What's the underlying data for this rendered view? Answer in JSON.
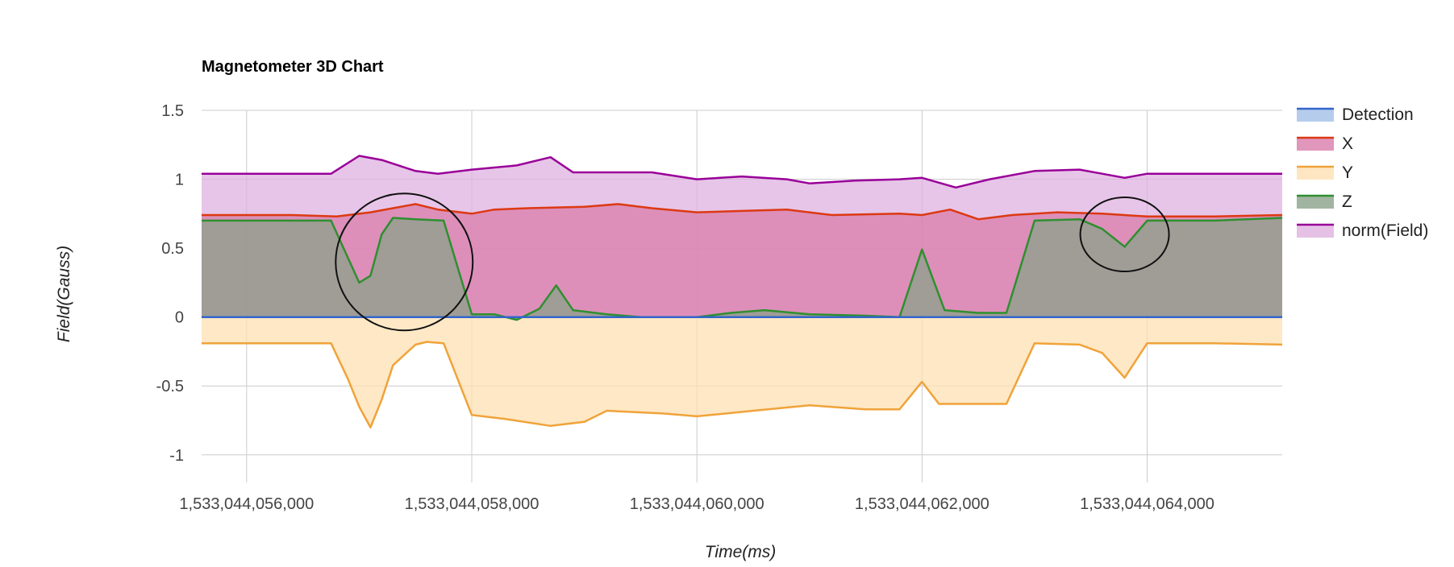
{
  "chart_data": {
    "type": "area",
    "title": "Magnetometer 3D Chart",
    "xlabel": "Time(ms)",
    "ylabel": "Field(Gauss)",
    "xlim": [
      1533044055600,
      1533044065200
    ],
    "ylim": [
      -1.2,
      1.5
    ],
    "x_ticks": [
      1533044056000,
      1533044058000,
      1533044060000,
      1533044062000,
      1533044064000
    ],
    "x_tick_labels": [
      "1,533,044,056,000",
      "1,533,044,058,000",
      "1,533,044,060,000",
      "1,533,044,062,000",
      "1,533,044,064,000"
    ],
    "y_ticks": [
      1.5,
      1,
      0.5,
      0,
      -0.5,
      -1
    ],
    "y_tick_labels": [
      "1.5",
      "1",
      "0.5",
      "0",
      "-0.5",
      "-1"
    ],
    "grid": true,
    "legend_position": "right",
    "series": [
      {
        "name": "Detection",
        "color": "#3366cc",
        "fill": "#a4bfe8",
        "points": [
          [
            1533044055600,
            0
          ],
          [
            1533044065200,
            0
          ]
        ]
      },
      {
        "name": "X",
        "color": "#dc3912",
        "fill": "#d97cab",
        "points": [
          [
            1533044055600,
            0.74
          ],
          [
            1533044056000,
            0.74
          ],
          [
            1533044056400,
            0.74
          ],
          [
            1533044056800,
            0.73
          ],
          [
            1533044057100,
            0.76
          ],
          [
            1533044057300,
            0.79
          ],
          [
            1533044057500,
            0.82
          ],
          [
            1533044057700,
            0.78
          ],
          [
            1533044058000,
            0.75
          ],
          [
            1533044058200,
            0.78
          ],
          [
            1533044058500,
            0.79
          ],
          [
            1533044059000,
            0.8
          ],
          [
            1533044059300,
            0.82
          ],
          [
            1533044059600,
            0.79
          ],
          [
            1533044060000,
            0.76
          ],
          [
            1533044060400,
            0.77
          ],
          [
            1533044060800,
            0.78
          ],
          [
            1533044061200,
            0.74
          ],
          [
            1533044061800,
            0.75
          ],
          [
            1533044062000,
            0.74
          ],
          [
            1533044062250,
            0.78
          ],
          [
            1533044062500,
            0.71
          ],
          [
            1533044062800,
            0.74
          ],
          [
            1533044063200,
            0.76
          ],
          [
            1533044063600,
            0.75
          ],
          [
            1533044064000,
            0.73
          ],
          [
            1533044064600,
            0.73
          ],
          [
            1533044065200,
            0.74
          ]
        ]
      },
      {
        "name": "Y",
        "color": "#f0a33a",
        "fill": "#fde0b1",
        "points": [
          [
            1533044055600,
            -0.19
          ],
          [
            1533044056000,
            -0.19
          ],
          [
            1533044056500,
            -0.19
          ],
          [
            1533044056750,
            -0.19
          ],
          [
            1533044056900,
            -0.45
          ],
          [
            1533044057000,
            -0.65
          ],
          [
            1533044057100,
            -0.8
          ],
          [
            1533044057200,
            -0.6
          ],
          [
            1533044057300,
            -0.35
          ],
          [
            1533044057500,
            -0.2
          ],
          [
            1533044057600,
            -0.18
          ],
          [
            1533044057750,
            -0.19
          ],
          [
            1533044058000,
            -0.71
          ],
          [
            1533044058300,
            -0.74
          ],
          [
            1533044058700,
            -0.79
          ],
          [
            1533044059000,
            -0.76
          ],
          [
            1533044059200,
            -0.68
          ],
          [
            1533044059700,
            -0.7
          ],
          [
            1533044060000,
            -0.72
          ],
          [
            1533044060500,
            -0.68
          ],
          [
            1533044061000,
            -0.64
          ],
          [
            1533044061500,
            -0.67
          ],
          [
            1533044061800,
            -0.67
          ],
          [
            1533044062000,
            -0.47
          ],
          [
            1533044062150,
            -0.63
          ],
          [
            1533044062500,
            -0.63
          ],
          [
            1533044062750,
            -0.63
          ],
          [
            1533044063000,
            -0.19
          ],
          [
            1533044063400,
            -0.2
          ],
          [
            1533044063600,
            -0.26
          ],
          [
            1533044063800,
            -0.44
          ],
          [
            1533044064000,
            -0.19
          ],
          [
            1533044064600,
            -0.19
          ],
          [
            1533044065200,
            -0.2
          ]
        ]
      },
      {
        "name": "Z",
        "color": "#2f8f2f",
        "fill": "#8aa18a",
        "points": [
          [
            1533044055600,
            0.7
          ],
          [
            1533044056000,
            0.7
          ],
          [
            1533044056500,
            0.7
          ],
          [
            1533044056750,
            0.7
          ],
          [
            1533044057000,
            0.25
          ],
          [
            1533044057100,
            0.3
          ],
          [
            1533044057200,
            0.6
          ],
          [
            1533044057300,
            0.72
          ],
          [
            1533044057500,
            0.71
          ],
          [
            1533044057750,
            0.7
          ],
          [
            1533044058000,
            0.02
          ],
          [
            1533044058200,
            0.02
          ],
          [
            1533044058400,
            -0.02
          ],
          [
            1533044058600,
            0.06
          ],
          [
            1533044058750,
            0.23
          ],
          [
            1533044058900,
            0.05
          ],
          [
            1533044059200,
            0.02
          ],
          [
            1533044059500,
            0.0
          ],
          [
            1533044060000,
            0.0
          ],
          [
            1533044060300,
            0.03
          ],
          [
            1533044060600,
            0.05
          ],
          [
            1533044061000,
            0.02
          ],
          [
            1533044061500,
            0.01
          ],
          [
            1533044061800,
            0.0
          ],
          [
            1533044062000,
            0.49
          ],
          [
            1533044062200,
            0.05
          ],
          [
            1533044062500,
            0.03
          ],
          [
            1533044062750,
            0.03
          ],
          [
            1533044063000,
            0.7
          ],
          [
            1533044063400,
            0.71
          ],
          [
            1533044063600,
            0.64
          ],
          [
            1533044063800,
            0.51
          ],
          [
            1533044064000,
            0.7
          ],
          [
            1533044064600,
            0.7
          ],
          [
            1533044065200,
            0.72
          ]
        ]
      },
      {
        "name": "norm(Field)",
        "color": "#990099",
        "fill": "#dfb2e0",
        "points": [
          [
            1533044055600,
            1.04
          ],
          [
            1533044056000,
            1.04
          ],
          [
            1533044056500,
            1.04
          ],
          [
            1533044056750,
            1.04
          ],
          [
            1533044057000,
            1.17
          ],
          [
            1533044057200,
            1.14
          ],
          [
            1533044057500,
            1.06
          ],
          [
            1533044057700,
            1.04
          ],
          [
            1533044058000,
            1.07
          ],
          [
            1533044058400,
            1.1
          ],
          [
            1533044058700,
            1.16
          ],
          [
            1533044058900,
            1.05
          ],
          [
            1533044059200,
            1.05
          ],
          [
            1533044059600,
            1.05
          ],
          [
            1533044060000,
            1.0
          ],
          [
            1533044060400,
            1.02
          ],
          [
            1533044060800,
            1.0
          ],
          [
            1533044061000,
            0.97
          ],
          [
            1533044061400,
            0.99
          ],
          [
            1533044061800,
            1.0
          ],
          [
            1533044062000,
            1.01
          ],
          [
            1533044062300,
            0.94
          ],
          [
            1533044062600,
            1.0
          ],
          [
            1533044063000,
            1.06
          ],
          [
            1533044063400,
            1.07
          ],
          [
            1533044063600,
            1.04
          ],
          [
            1533044063800,
            1.01
          ],
          [
            1533044064000,
            1.04
          ],
          [
            1533044064600,
            1.04
          ],
          [
            1533044065200,
            1.04
          ]
        ]
      }
    ],
    "annotations": [
      {
        "shape": "circle",
        "cx": 1533044057400,
        "cy": 0.4
      },
      {
        "shape": "ellipse",
        "cx": 1533044063800,
        "cy": 0.6
      }
    ]
  }
}
